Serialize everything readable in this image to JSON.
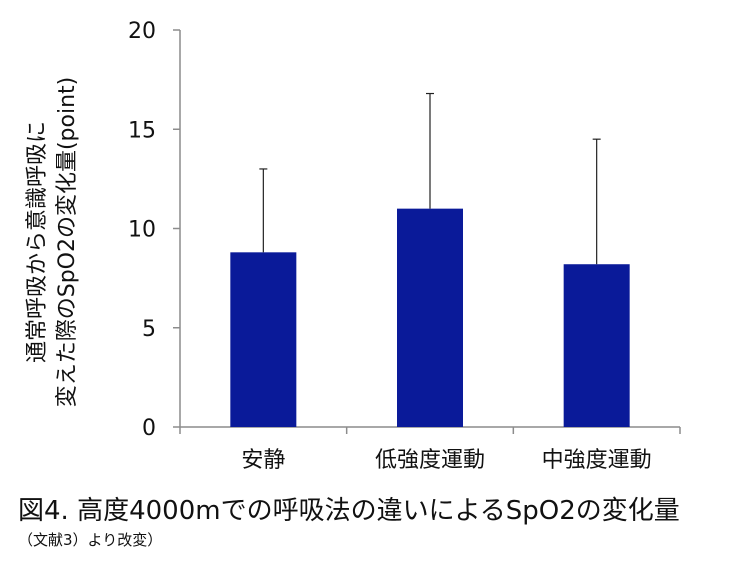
{
  "chart_data": {
    "type": "bar",
    "categories": [
      "安静",
      "低強度運動",
      "中強度運動"
    ],
    "values": [
      8.8,
      11.0,
      8.2
    ],
    "errors": [
      4.2,
      5.8,
      6.3
    ],
    "ylabel_lines": [
      "通常呼吸から意識呼吸に",
      "変えた際のSpO2の変化量(point)"
    ],
    "ylim": [
      0,
      20
    ],
    "yticks": [
      0,
      5,
      10,
      15,
      20
    ],
    "bar_color": "#0a1a99",
    "axis_color": "#8c8c8c",
    "grid": false
  },
  "caption": "図4. 高度4000mでの呼吸法の違いによるSpO2の変化量",
  "subcaption": "（文献3）より改変）"
}
